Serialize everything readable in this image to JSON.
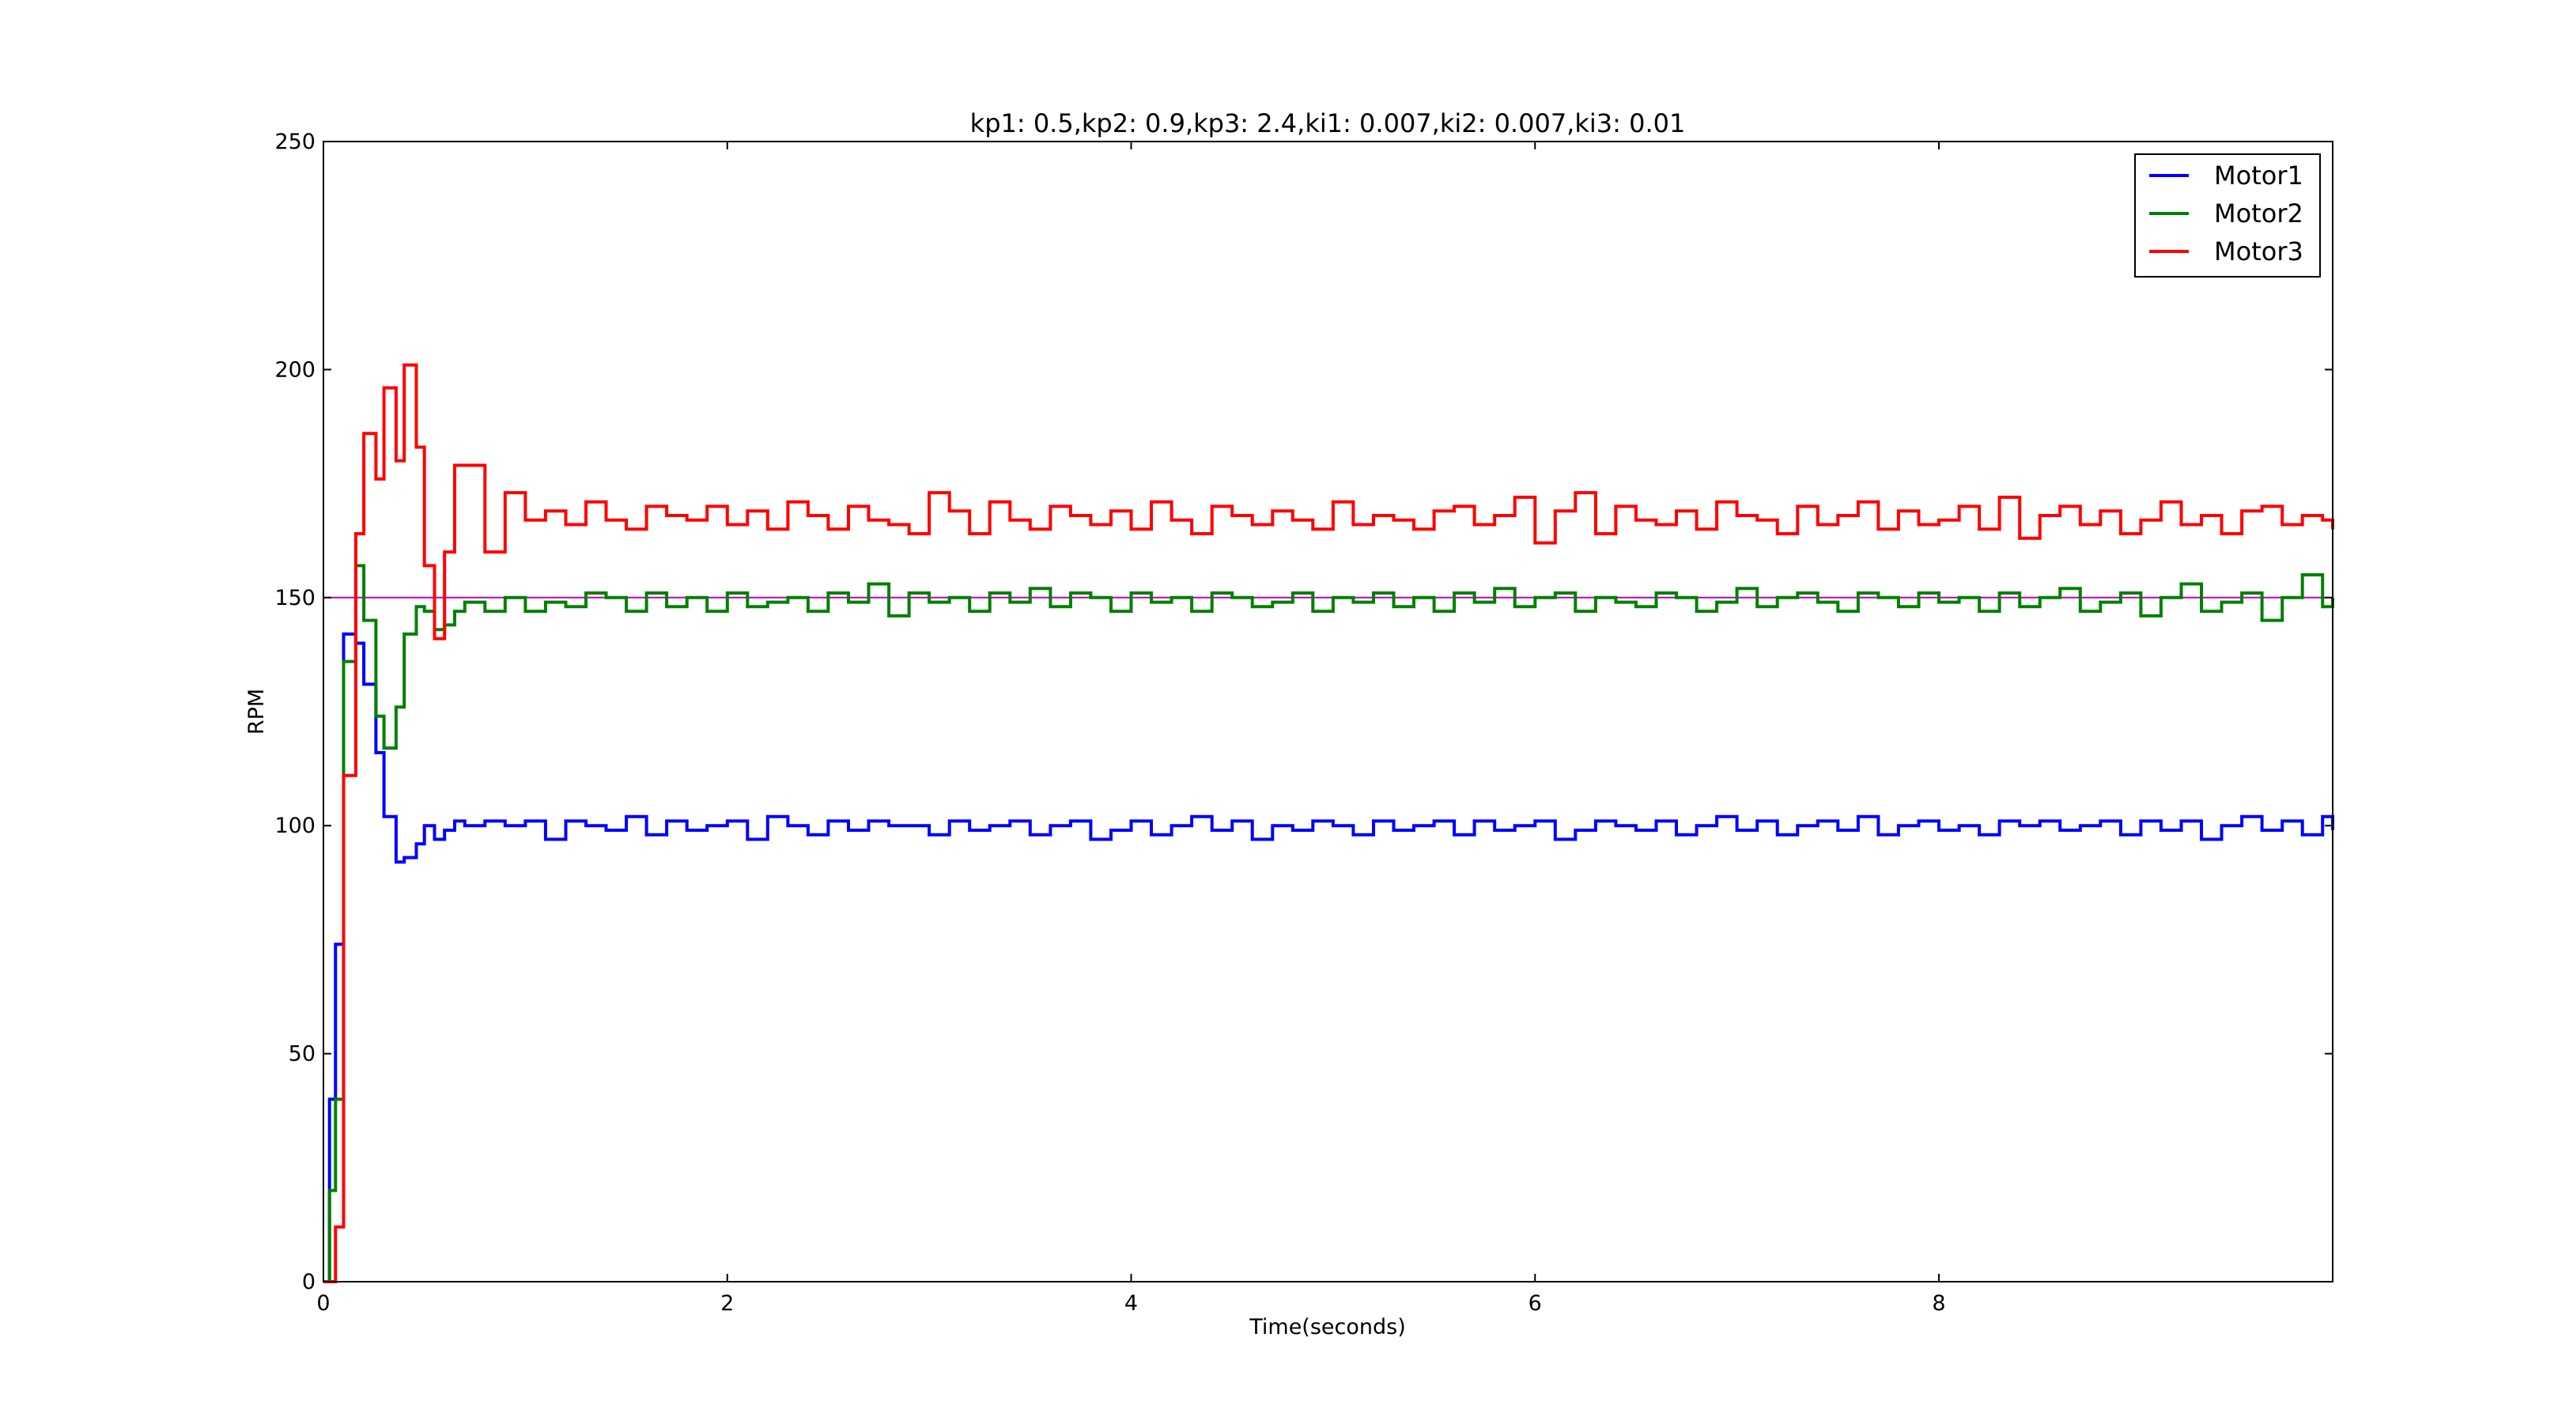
{
  "chart_data": {
    "type": "line",
    "title": "kp1: 0.5,kp2: 0.9,kp3: 2.4,ki1: 0.007,ki2: 0.007,ki3: 0.01",
    "xlabel": "Time(seconds)",
    "ylabel": "RPM",
    "xlim": [
      0,
      9.95
    ],
    "ylim": [
      0,
      250
    ],
    "xticks": [
      0,
      2,
      4,
      6,
      8
    ],
    "yticks": [
      0,
      50,
      100,
      150,
      200,
      250
    ],
    "grid": false,
    "legend_position": "top-right",
    "reference_line": {
      "y": 150,
      "color": "#bf00bf"
    },
    "series": [
      {
        "name": "Motor1",
        "color": "#0000ff",
        "x": [
          0,
          0.03,
          0.06,
          0.1,
          0.16,
          0.2,
          0.26,
          0.3,
          0.36,
          0.4,
          0.46,
          0.5,
          0.55,
          0.6,
          0.65,
          0.7,
          0.8,
          0.9,
          1.0,
          1.1,
          1.2,
          1.3,
          1.4,
          1.5,
          1.6,
          1.7,
          1.8,
          1.9,
          2.0,
          2.1,
          2.2,
          2.3,
          2.4,
          2.5,
          2.6,
          2.7,
          2.8,
          2.9,
          3.0,
          3.1,
          3.2,
          3.3,
          3.4,
          3.5,
          3.6,
          3.7,
          3.8,
          3.9,
          4.0,
          4.1,
          4.2,
          4.3,
          4.4,
          4.5,
          4.6,
          4.7,
          4.8,
          4.9,
          5.0,
          5.1,
          5.2,
          5.3,
          5.4,
          5.5,
          5.6,
          5.7,
          5.8,
          5.9,
          6.0,
          6.1,
          6.2,
          6.3,
          6.4,
          6.5,
          6.6,
          6.7,
          6.8,
          6.9,
          7.0,
          7.1,
          7.2,
          7.3,
          7.4,
          7.5,
          7.6,
          7.7,
          7.8,
          7.9,
          8.0,
          8.1,
          8.2,
          8.3,
          8.4,
          8.5,
          8.6,
          8.7,
          8.8,
          8.9,
          9.0,
          9.1,
          9.2,
          9.3,
          9.4,
          9.5,
          9.6,
          9.7,
          9.8,
          9.9,
          9.95
        ],
        "y": [
          0,
          40,
          74,
          142,
          140,
          131,
          116,
          102,
          92,
          93,
          96,
          100,
          97,
          99,
          101,
          100,
          101,
          100,
          101,
          97,
          101,
          100,
          99,
          102,
          98,
          101,
          99,
          100,
          101,
          97,
          102,
          100,
          98,
          101,
          99,
          101,
          100,
          100,
          98,
          101,
          99,
          100,
          101,
          98,
          100,
          101,
          97,
          99,
          101,
          98,
          100,
          102,
          99,
          101,
          97,
          100,
          99,
          101,
          100,
          98,
          101,
          99,
          100,
          101,
          98,
          101,
          99,
          100,
          101,
          97,
          99,
          101,
          100,
          99,
          101,
          98,
          100,
          102,
          99,
          101,
          98,
          100,
          101,
          99,
          102,
          98,
          100,
          101,
          99,
          100,
          98,
          101,
          100,
          101,
          99,
          100,
          101,
          98,
          101,
          99,
          101,
          97,
          100,
          102,
          99,
          101,
          98,
          102,
          99
        ]
      },
      {
        "name": "Motor2",
        "color": "#008000",
        "x": [
          0,
          0.03,
          0.06,
          0.1,
          0.16,
          0.2,
          0.26,
          0.3,
          0.36,
          0.4,
          0.46,
          0.5,
          0.55,
          0.6,
          0.65,
          0.7,
          0.8,
          0.9,
          1.0,
          1.1,
          1.2,
          1.3,
          1.4,
          1.5,
          1.6,
          1.7,
          1.8,
          1.9,
          2.0,
          2.1,
          2.2,
          2.3,
          2.4,
          2.5,
          2.6,
          2.7,
          2.8,
          2.9,
          3.0,
          3.1,
          3.2,
          3.3,
          3.4,
          3.5,
          3.6,
          3.7,
          3.8,
          3.9,
          4.0,
          4.1,
          4.2,
          4.3,
          4.4,
          4.5,
          4.6,
          4.7,
          4.8,
          4.9,
          5.0,
          5.1,
          5.2,
          5.3,
          5.4,
          5.5,
          5.6,
          5.7,
          5.8,
          5.9,
          6.0,
          6.1,
          6.2,
          6.3,
          6.4,
          6.5,
          6.6,
          6.7,
          6.8,
          6.9,
          7.0,
          7.1,
          7.2,
          7.3,
          7.4,
          7.5,
          7.6,
          7.7,
          7.8,
          7.9,
          8.0,
          8.1,
          8.2,
          8.3,
          8.4,
          8.5,
          8.6,
          8.7,
          8.8,
          8.9,
          9.0,
          9.1,
          9.2,
          9.3,
          9.4,
          9.5,
          9.6,
          9.7,
          9.8,
          9.9,
          9.95
        ],
        "y": [
          0,
          20,
          40,
          136,
          157,
          145,
          124,
          117,
          126,
          142,
          148,
          147,
          143,
          144,
          147,
          149,
          147,
          150,
          147,
          149,
          148,
          151,
          150,
          147,
          151,
          148,
          150,
          147,
          151,
          148,
          149,
          150,
          147,
          151,
          149,
          153,
          146,
          151,
          149,
          150,
          147,
          151,
          149,
          152,
          148,
          151,
          150,
          147,
          151,
          149,
          150,
          147,
          151,
          150,
          148,
          149,
          151,
          147,
          150,
          149,
          151,
          148,
          150,
          147,
          151,
          149,
          152,
          148,
          150,
          151,
          147,
          150,
          149,
          148,
          151,
          150,
          147,
          149,
          152,
          148,
          150,
          151,
          149,
          147,
          151,
          150,
          148,
          151,
          149,
          150,
          147,
          151,
          148,
          150,
          152,
          147,
          149,
          151,
          146,
          150,
          153,
          147,
          149,
          151,
          145,
          150,
          155,
          148,
          150
        ]
      },
      {
        "name": "Motor3",
        "color": "#ff0000",
        "x": [
          0,
          0.03,
          0.06,
          0.1,
          0.16,
          0.2,
          0.26,
          0.3,
          0.36,
          0.4,
          0.46,
          0.5,
          0.55,
          0.6,
          0.65,
          0.7,
          0.8,
          0.9,
          1.0,
          1.1,
          1.2,
          1.3,
          1.4,
          1.5,
          1.6,
          1.7,
          1.8,
          1.9,
          2.0,
          2.1,
          2.2,
          2.3,
          2.4,
          2.5,
          2.6,
          2.7,
          2.8,
          2.9,
          3.0,
          3.1,
          3.2,
          3.3,
          3.4,
          3.5,
          3.6,
          3.7,
          3.8,
          3.9,
          4.0,
          4.1,
          4.2,
          4.3,
          4.4,
          4.5,
          4.6,
          4.7,
          4.8,
          4.9,
          5.0,
          5.1,
          5.2,
          5.3,
          5.4,
          5.5,
          5.6,
          5.7,
          5.8,
          5.9,
          6.0,
          6.1,
          6.2,
          6.3,
          6.4,
          6.5,
          6.6,
          6.7,
          6.8,
          6.9,
          7.0,
          7.1,
          7.2,
          7.3,
          7.4,
          7.5,
          7.6,
          7.7,
          7.8,
          7.9,
          8.0,
          8.1,
          8.2,
          8.3,
          8.4,
          8.5,
          8.6,
          8.7,
          8.8,
          8.9,
          9.0,
          9.1,
          9.2,
          9.3,
          9.4,
          9.5,
          9.6,
          9.7,
          9.8,
          9.9,
          9.95
        ],
        "y": [
          0,
          0,
          12,
          111,
          164,
          186,
          176,
          196,
          180,
          201,
          183,
          157,
          141,
          160,
          179,
          179,
          160,
          173,
          167,
          169,
          166,
          171,
          167,
          165,
          170,
          168,
          167,
          170,
          166,
          169,
          165,
          171,
          168,
          165,
          170,
          167,
          166,
          164,
          173,
          169,
          164,
          171,
          167,
          165,
          170,
          168,
          166,
          169,
          165,
          171,
          167,
          164,
          170,
          168,
          166,
          169,
          167,
          165,
          171,
          166,
          168,
          167,
          165,
          169,
          170,
          166,
          168,
          172,
          162,
          169,
          173,
          164,
          170,
          167,
          166,
          169,
          165,
          171,
          168,
          167,
          164,
          170,
          166,
          168,
          171,
          165,
          169,
          166,
          167,
          170,
          165,
          172,
          163,
          168,
          170,
          166,
          169,
          164,
          167,
          171,
          166,
          168,
          164,
          169,
          170,
          166,
          168,
          167,
          165
        ]
      }
    ]
  }
}
